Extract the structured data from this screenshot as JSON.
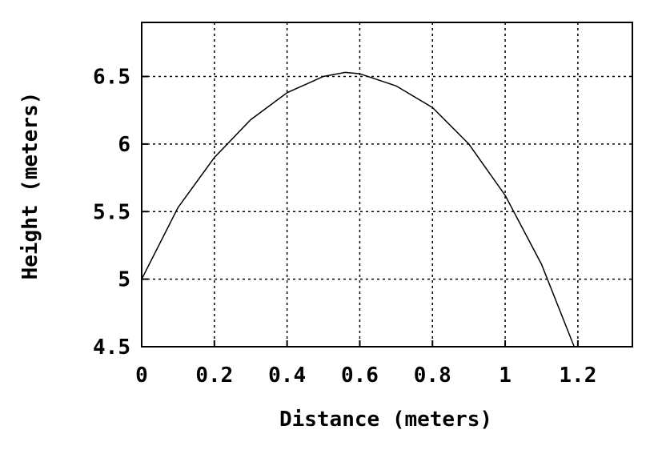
{
  "chart_data": {
    "type": "line",
    "title": "",
    "xlabel": "Distance (meters)",
    "ylabel": "Height (meters)",
    "xlim": [
      0,
      1.35
    ],
    "ylim": [
      4.5,
      6.9
    ],
    "grid": true,
    "x_ticks": [
      0,
      0.2,
      0.4,
      0.6,
      0.8,
      1,
      1.2
    ],
    "x_tick_labels": [
      "0",
      "0.2",
      "0.4",
      "0.6",
      "0.8",
      "1",
      "1.2"
    ],
    "y_ticks": [
      4.5,
      5,
      5.5,
      6,
      6.5
    ],
    "y_tick_labels": [
      "4.5",
      "5",
      "5.5",
      "6",
      "6.5"
    ],
    "series": [
      {
        "x": [
          0,
          0.1,
          0.2,
          0.3,
          0.4,
          0.5,
          0.56,
          0.6,
          0.7,
          0.8,
          0.9,
          1.0,
          1.1,
          1.19
        ],
        "y": [
          5.0,
          5.53,
          5.9,
          6.18,
          6.38,
          6.5,
          6.53,
          6.52,
          6.43,
          6.27,
          6.0,
          5.62,
          5.11,
          4.5
        ]
      }
    ]
  }
}
